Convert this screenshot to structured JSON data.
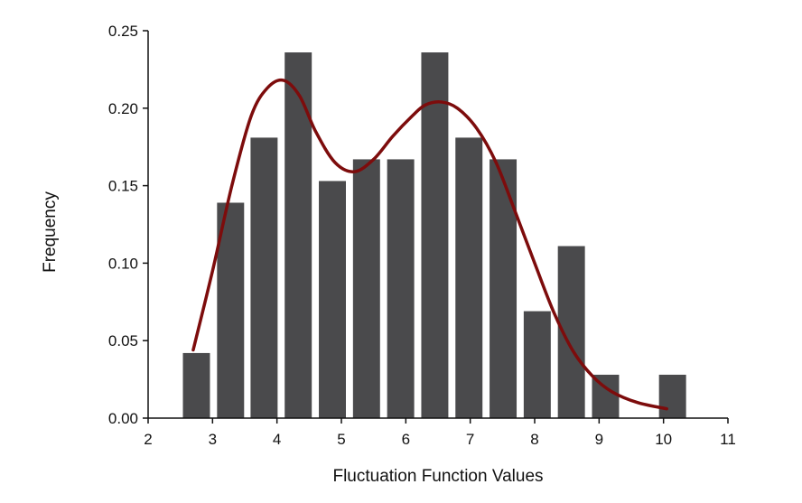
{
  "colors": {
    "bar": "#4a4a4c",
    "curve": "#7d0c0c",
    "axis": "#111111"
  },
  "chart_data": {
    "type": "bar",
    "title": "",
    "xlabel": "Fluctuation Function Values",
    "ylabel": "Frequency",
    "xlim": [
      2,
      11
    ],
    "ylim": [
      0,
      0.25
    ],
    "xticks": [
      "2",
      "3",
      "4",
      "5",
      "6",
      "7",
      "8",
      "9",
      "10",
      "11"
    ],
    "yticks": [
      "0.00",
      "0.05",
      "0.10",
      "0.15",
      "0.20",
      "0.25"
    ],
    "bar_width": 0.42,
    "bars": [
      {
        "x": 2.75,
        "value": 0.042
      },
      {
        "x": 3.28,
        "value": 0.139
      },
      {
        "x": 3.8,
        "value": 0.181
      },
      {
        "x": 4.33,
        "value": 0.236
      },
      {
        "x": 4.86,
        "value": 0.153
      },
      {
        "x": 5.39,
        "value": 0.167
      },
      {
        "x": 5.92,
        "value": 0.167
      },
      {
        "x": 6.45,
        "value": 0.236
      },
      {
        "x": 6.98,
        "value": 0.181
      },
      {
        "x": 7.51,
        "value": 0.167
      },
      {
        "x": 8.04,
        "value": 0.069
      },
      {
        "x": 8.57,
        "value": 0.111
      },
      {
        "x": 9.1,
        "value": 0.028
      },
      {
        "x": 10.14,
        "value": 0.028
      }
    ],
    "series": [
      {
        "type": "line",
        "points": [
          [
            2.7,
            0.044
          ],
          [
            3.0,
            0.095
          ],
          [
            3.3,
            0.15
          ],
          [
            3.6,
            0.195
          ],
          [
            3.85,
            0.213
          ],
          [
            4.1,
            0.218
          ],
          [
            4.35,
            0.208
          ],
          [
            4.6,
            0.185
          ],
          [
            4.9,
            0.165
          ],
          [
            5.2,
            0.159
          ],
          [
            5.5,
            0.167
          ],
          [
            5.8,
            0.182
          ],
          [
            6.1,
            0.195
          ],
          [
            6.3,
            0.202
          ],
          [
            6.55,
            0.204
          ],
          [
            6.8,
            0.2
          ],
          [
            7.1,
            0.187
          ],
          [
            7.4,
            0.165
          ],
          [
            7.7,
            0.133
          ],
          [
            8.0,
            0.1
          ],
          [
            8.3,
            0.068
          ],
          [
            8.6,
            0.043
          ],
          [
            8.9,
            0.027
          ],
          [
            9.2,
            0.017
          ],
          [
            9.6,
            0.01
          ],
          [
            10.05,
            0.006
          ]
        ]
      }
    ]
  }
}
